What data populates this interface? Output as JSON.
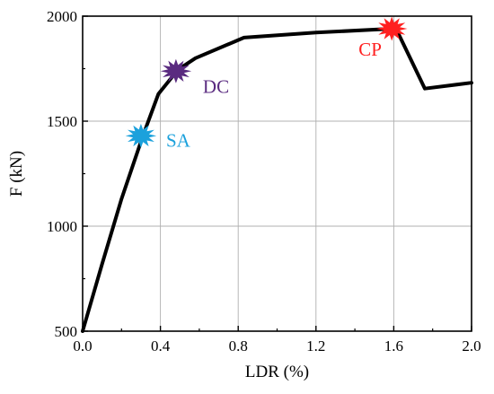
{
  "chart_data": {
    "type": "line",
    "title": "",
    "xlabel": "LDR (%)",
    "ylabel": "F (kN)",
    "xlim": [
      0,
      2.0
    ],
    "ylim": [
      500,
      2000
    ],
    "x_ticks": [
      "0.0",
      "0.4",
      "0.8",
      "1.2",
      "1.6",
      "2.0"
    ],
    "y_ticks": [
      "500",
      "1000",
      "1500",
      "2000"
    ],
    "grid": true,
    "series": [
      {
        "color": "#000000",
        "points": [
          [
            0.0,
            500
          ],
          [
            0.1,
            820
          ],
          [
            0.2,
            1130
          ],
          [
            0.31,
            1430
          ],
          [
            0.39,
            1630
          ],
          [
            0.49,
            1745
          ],
          [
            0.58,
            1800
          ],
          [
            0.83,
            1898
          ],
          [
            1.2,
            1922
          ],
          [
            1.59,
            1940
          ],
          [
            1.62,
            1925
          ],
          [
            1.76,
            1655
          ],
          [
            2.0,
            1683
          ]
        ]
      }
    ],
    "markers": [
      {
        "label": "SA",
        "x": 0.3,
        "y": 1430,
        "color": "#1ba1dc"
      },
      {
        "label": "DC",
        "x": 0.48,
        "y": 1738,
        "color": "#5a2b80"
      },
      {
        "label": "CP",
        "x": 1.59,
        "y": 1940,
        "color": "#ff2020"
      }
    ]
  }
}
